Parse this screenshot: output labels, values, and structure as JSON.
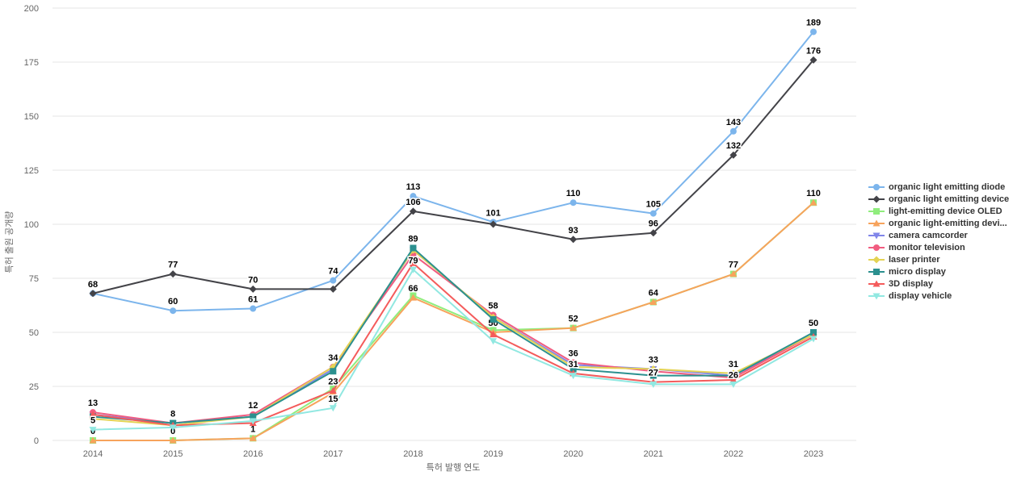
{
  "chart_data": {
    "type": "line",
    "title": "",
    "xlabel": "특허 발행 연도",
    "ylabel": "특허 출원 공개량",
    "x_categories": [
      "2014",
      "2015",
      "2016",
      "2017",
      "2018",
      "2019",
      "2020",
      "2021",
      "2022",
      "2023"
    ],
    "y_ticks": [
      0,
      25,
      50,
      75,
      100,
      125,
      150,
      175,
      200
    ],
    "ylim": [
      0,
      200
    ],
    "grid": true,
    "legend_position": "right",
    "series": [
      {
        "name": "organic light emitting diode",
        "color": "#7cb5ec",
        "marker": "circle",
        "values": [
          68,
          60,
          61,
          74,
          113,
          101,
          110,
          105,
          143,
          189
        ],
        "labeled_indices": [
          1,
          2,
          3,
          4,
          5,
          6,
          7,
          8,
          9
        ]
      },
      {
        "name": "organic light emitting device",
        "color": "#434348",
        "marker": "diamond",
        "values": [
          68,
          77,
          70,
          70,
          106,
          100,
          93,
          96,
          132,
          176
        ],
        "labeled_indices": [
          0,
          1,
          2,
          4,
          6,
          7,
          8,
          9
        ]
      },
      {
        "name": "light-emitting device OLED",
        "color": "#90ed7d",
        "marker": "square",
        "values": [
          0,
          0,
          1,
          24,
          67,
          51,
          52,
          64,
          77,
          110
        ],
        "labeled_indices": []
      },
      {
        "name": "organic light-emitting devi...",
        "color": "#f7a35c",
        "marker": "triangle",
        "values": [
          0,
          0,
          1,
          22,
          66,
          50,
          52,
          64,
          77,
          110
        ],
        "labeled_indices": [
          0,
          1,
          2,
          4,
          5,
          6,
          7,
          8,
          9
        ]
      },
      {
        "name": "camera camcorder",
        "color": "#8085e9",
        "marker": "triangle-down",
        "values": [
          12,
          8,
          11,
          33,
          88,
          57,
          35,
          33,
          30,
          49
        ],
        "labeled_indices": []
      },
      {
        "name": "monitor television",
        "color": "#f15c80",
        "marker": "circle",
        "values": [
          13,
          8,
          12,
          34,
          86,
          58,
          36,
          32,
          29,
          49
        ],
        "labeled_indices": [
          0,
          2,
          5,
          6
        ]
      },
      {
        "name": "laser printer",
        "color": "#e4d354",
        "marker": "diamond",
        "values": [
          10,
          7,
          11,
          34,
          88,
          57,
          34,
          33,
          31,
          49
        ],
        "labeled_indices": [
          3,
          7,
          8
        ]
      },
      {
        "name": "micro display",
        "color": "#2b908f",
        "marker": "square",
        "values": [
          11,
          8,
          11,
          32,
          89,
          56,
          33,
          30,
          30,
          50
        ],
        "labeled_indices": [
          1,
          4,
          9
        ]
      },
      {
        "name": "3D display",
        "color": "#f45b5b",
        "marker": "triangle",
        "values": [
          12,
          7,
          8,
          23,
          82,
          49,
          31,
          27,
          28,
          48
        ],
        "labeled_indices": [
          3,
          6,
          7
        ]
      },
      {
        "name": "display vehicle",
        "color": "#91e8e1",
        "marker": "triangle-down",
        "values": [
          5,
          6,
          9,
          15,
          79,
          46,
          30,
          26,
          26,
          47
        ],
        "labeled_indices": [
          0,
          3,
          4,
          8
        ]
      }
    ]
  }
}
